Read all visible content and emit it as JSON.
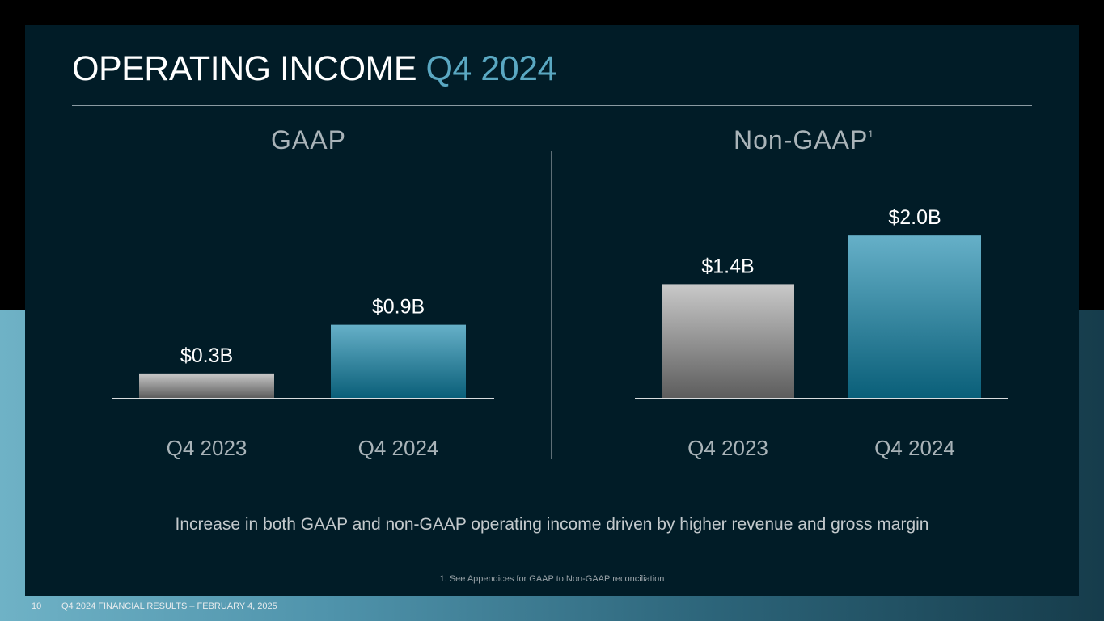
{
  "title": {
    "main": "OPERATING INCOME",
    "accent": "Q4 2024"
  },
  "colors": {
    "prior_bar_top": "#c9c9c9",
    "prior_bar_bottom": "#5d5d5d",
    "current_bar_top": "#66b0c8",
    "current_bar_bottom": "#0a5f79",
    "accent": "#5aa8c2"
  },
  "chart_data": [
    {
      "type": "bar",
      "title": "GAAP",
      "title_superscript": "",
      "categories": [
        "Q4 2023",
        "Q4 2024"
      ],
      "values": [
        0.3,
        0.9
      ],
      "data_labels": [
        "$0.3B",
        "$0.9B"
      ],
      "unit": "$B",
      "ylim": [
        0,
        2.4
      ],
      "grid": false
    },
    {
      "type": "bar",
      "title": "Non-GAAP",
      "title_superscript": "1",
      "categories": [
        "Q4 2023",
        "Q4 2024"
      ],
      "values": [
        1.4,
        2.0
      ],
      "data_labels": [
        "$1.4B",
        "$2.0B"
      ],
      "unit": "$B",
      "ylim": [
        0,
        2.4
      ],
      "grid": false
    }
  ],
  "summary": "Increase in both GAAP and non-GAAP operating income driven by higher revenue and gross margin",
  "footnote": "1. See Appendices for GAAP to Non-GAAP reconciliation",
  "footer": {
    "page_number": "10",
    "text": "Q4 2024 FINANCIAL RESULTS – FEBRUARY 4, 2025"
  }
}
